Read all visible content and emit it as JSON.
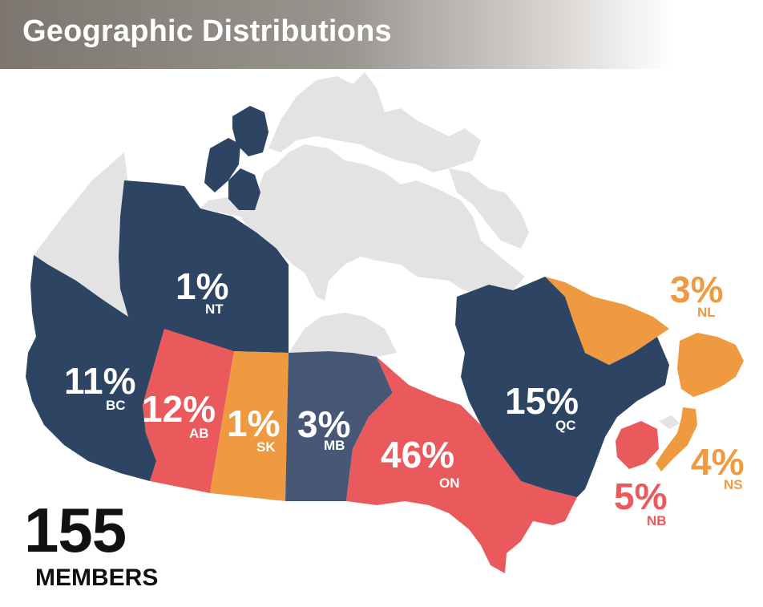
{
  "title": "Geographic Distributions",
  "total": {
    "count": "155",
    "label": "MEMBERS"
  },
  "colors": {
    "navy": "#2d4462",
    "slate": "#475877",
    "red": "#ea5a5d",
    "orange": "#ef9a40",
    "light_gray": "#e4e3e4",
    "white": "#ffffff"
  },
  "provinces": [
    {
      "abbr": "NT",
      "pct": "1%"
    },
    {
      "abbr": "BC",
      "pct": "11%"
    },
    {
      "abbr": "AB",
      "pct": "12%"
    },
    {
      "abbr": "SK",
      "pct": "1%"
    },
    {
      "abbr": "MB",
      "pct": "3%"
    },
    {
      "abbr": "ON",
      "pct": "46%"
    },
    {
      "abbr": "QC",
      "pct": "15%"
    },
    {
      "abbr": "NL",
      "pct": "3%"
    },
    {
      "abbr": "NS",
      "pct": "4%"
    },
    {
      "abbr": "NB",
      "pct": "5%"
    }
  ]
}
